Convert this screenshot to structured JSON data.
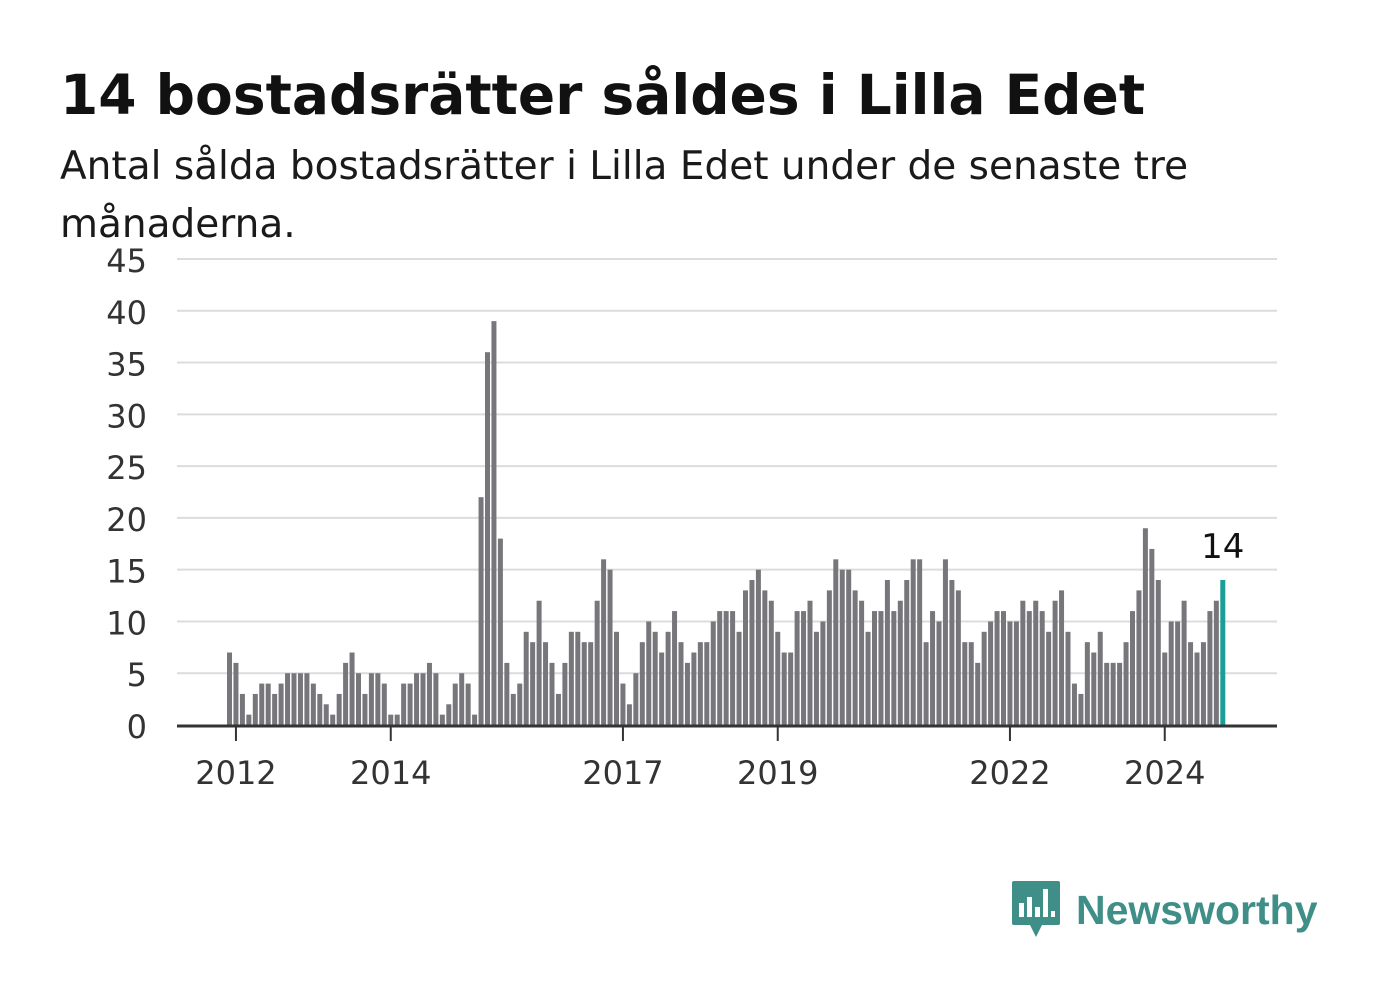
{
  "header": {
    "title": "14 bostadsrätter såldes i Lilla Edet",
    "subtitle": "Antal sålda bostadsrätter i Lilla Edet under de senaste tre månaderna."
  },
  "brand": {
    "name": "Newsworthy",
    "icon": "newsworthy-chart-bubble-icon",
    "color": "#3f8f88"
  },
  "colors": {
    "bar": "#77767b",
    "highlight": "#1a9e96",
    "grid": "#dcdcdc",
    "axis": "#333333"
  },
  "chart_data": {
    "type": "bar",
    "title": "14 bostadsrätter såldes i Lilla Edet",
    "xlabel": "",
    "ylabel": "",
    "ylim": [
      0,
      45
    ],
    "yticks": [
      0,
      5,
      10,
      15,
      20,
      25,
      30,
      35,
      40,
      45
    ],
    "xticks": [
      "2012",
      "2014",
      "2017",
      "2019",
      "2022",
      "2024"
    ],
    "grid": true,
    "legend": "none",
    "start_month": "2011-12",
    "x_tick_months": [
      "2012-01",
      "2014-01",
      "2017-01",
      "2019-01",
      "2022-01",
      "2024-01"
    ],
    "highlight_label": "14",
    "values": [
      7,
      6,
      3,
      1,
      3,
      4,
      4,
      3,
      4,
      5,
      5,
      5,
      5,
      4,
      3,
      2,
      1,
      3,
      6,
      7,
      5,
      3,
      5,
      5,
      4,
      1,
      1,
      4,
      4,
      5,
      5,
      6,
      5,
      1,
      2,
      4,
      5,
      4,
      1,
      22,
      36,
      39,
      18,
      6,
      3,
      4,
      9,
      8,
      12,
      8,
      6,
      3,
      6,
      9,
      9,
      8,
      8,
      12,
      16,
      15,
      9,
      4,
      2,
      5,
      8,
      10,
      9,
      7,
      9,
      11,
      8,
      6,
      7,
      8,
      8,
      10,
      11,
      11,
      11,
      9,
      13,
      14,
      15,
      13,
      12,
      9,
      7,
      7,
      11,
      11,
      12,
      9,
      10,
      13,
      16,
      15,
      15,
      13,
      12,
      9,
      11,
      11,
      14,
      11,
      12,
      14,
      16,
      16,
      8,
      11,
      10,
      16,
      14,
      13,
      8,
      8,
      6,
      9,
      10,
      11,
      11,
      10,
      10,
      12,
      11,
      12,
      11,
      9,
      12,
      13,
      9,
      4,
      3,
      8,
      7,
      9,
      6,
      6,
      6,
      8,
      11,
      13,
      19,
      17,
      14,
      7,
      10,
      10,
      12,
      8,
      7,
      8,
      11,
      12,
      14
    ]
  }
}
